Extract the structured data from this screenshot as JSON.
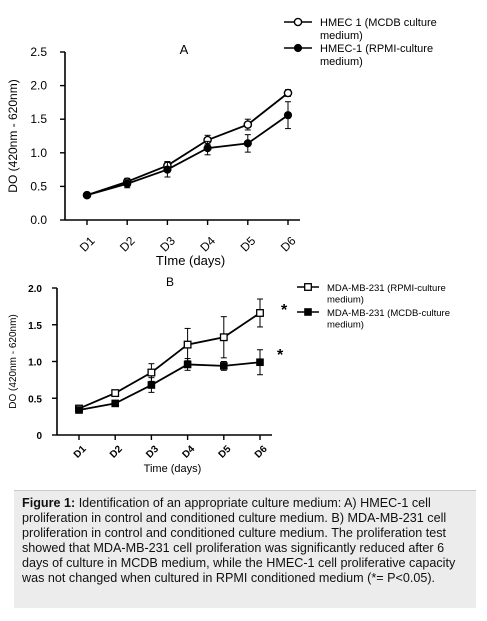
{
  "chart_data": [
    {
      "type": "line",
      "panel_label": "A",
      "xlabel": "TIme (days)",
      "ylabel": "DO (420nm - 620nm)",
      "categories": [
        "D1",
        "D2",
        "D3",
        "D4",
        "D5",
        "D6"
      ],
      "ylim": [
        0,
        2.5
      ],
      "yticks": [
        "0.0",
        "0.5",
        "1.0",
        "1.5",
        "2.0",
        "2.5"
      ],
      "legend_position": "top-right",
      "grid": false,
      "series": [
        {
          "name": "HMEC 1 (MCDB culture medium)",
          "name_lines": [
            "HMEC 1 (MCDB culture",
            "medium)"
          ],
          "marker": "open-circle",
          "values": [
            0.37,
            0.57,
            0.81,
            1.19,
            1.42,
            1.89
          ],
          "errors": [
            0.02,
            0.05,
            0.06,
            0.07,
            0.08,
            0.05
          ]
        },
        {
          "name": "HMEC-1 (RPMI-culture medium)",
          "name_lines": [
            "HMEC-1 (RPMI-culture",
            "medium)"
          ],
          "marker": "filled-circle",
          "values": [
            0.37,
            0.54,
            0.75,
            1.07,
            1.14,
            1.56
          ],
          "errors": [
            0.02,
            0.06,
            0.11,
            0.1,
            0.13,
            0.2
          ]
        }
      ]
    },
    {
      "type": "line",
      "panel_label": "B",
      "xlabel": "Time (days)",
      "ylabel": "DO (420nm - 620nm)",
      "categories": [
        "D1",
        "D2",
        "D3",
        "D4",
        "D5",
        "D6"
      ],
      "ylim": [
        0,
        2.0
      ],
      "yticks": [
        "0",
        "0.5",
        "1.0",
        "1.5",
        "2.0"
      ],
      "legend_position": "top-right",
      "grid": false,
      "significance_marks": [
        "*",
        "*"
      ],
      "series": [
        {
          "name": "MDA-MB-231 (RPMI-culture medium)",
          "name_lines": [
            "MDA-MB-231 (RPMI-culture",
            "medium)"
          ],
          "marker": "open-square",
          "values": [
            0.36,
            0.57,
            0.85,
            1.23,
            1.33,
            1.66
          ],
          "errors": [
            0.02,
            0.04,
            0.12,
            0.22,
            0.28,
            0.19
          ]
        },
        {
          "name": "MDA-MB-231 (MCDB-culture medium)",
          "name_lines": [
            "MDA-MB-231 (MCDB-culture",
            "medium)"
          ],
          "marker": "filled-square",
          "values": [
            0.34,
            0.43,
            0.68,
            0.96,
            0.94,
            0.99
          ],
          "errors": [
            0.02,
            0.03,
            0.1,
            0.08,
            0.06,
            0.17
          ]
        }
      ]
    }
  ],
  "caption": {
    "label": "Figure 1:",
    "text": "Identification of an appropriate culture medium: A) HMEC-1 cell proliferation in control and conditioned culture medium. B) MDA-MB-231 cell proliferation in control and conditioned culture medium. The proliferation test showed that MDA-MB-231 cell proliferation was significantly reduced after 6 days of culture in MCDB medium, while the HMEC-1 cell proliferative capacity was not changed when cultured in RPMI conditioned medium (*= P<0.05)."
  }
}
